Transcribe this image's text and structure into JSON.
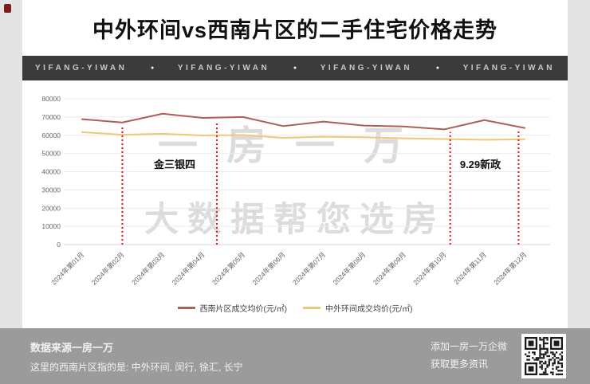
{
  "title": "中外环间vs西南片区的二手住宅价格走势",
  "banner": {
    "brand": "YIFANG-YIWAN",
    "separator": "●",
    "background": "#3b3b3b"
  },
  "chart_data": {
    "type": "line",
    "categories": [
      "2024年第01月",
      "2024年第02月",
      "2024年第03月",
      "2024年第04月",
      "2024年第05月",
      "2024年第06月",
      "2024年第07月",
      "2024年第08月",
      "2024年第09月",
      "2024年第10月",
      "2024年第11月",
      "2024年第12月"
    ],
    "series": [
      {
        "name": "西南片区成交均价(元/㎡)",
        "color": "#ae5f5a",
        "values": [
          68800,
          67000,
          71800,
          69500,
          70000,
          65000,
          67500,
          65300,
          64800,
          63200,
          68300,
          64000
        ]
      },
      {
        "name": "中外环间成交均价(元/㎡)",
        "color": "#edc878",
        "values": [
          61700,
          60300,
          60800,
          59900,
          60100,
          58600,
          59200,
          58900,
          58300,
          57900,
          57500,
          57800
        ]
      }
    ],
    "ylim": [
      0,
      80000
    ],
    "yticks": [
      0,
      10000,
      20000,
      30000,
      40000,
      50000,
      60000,
      70000,
      80000
    ],
    "grid": true,
    "legend_position": "bottom",
    "markers": {
      "color": "#ef1010",
      "positions": [
        2.0,
        4.35,
        10.15,
        11.85
      ]
    },
    "annotations": [
      {
        "text": "金三银四",
        "month_index": 3.3,
        "value": 42000
      },
      {
        "text": "9.29新政",
        "month_index": 10.9,
        "value": 42000
      }
    ],
    "watermark": {
      "line1": "一房一万",
      "line2": "大数据帮您选房"
    }
  },
  "footer": {
    "source_line1": "数据来源一房一万",
    "source_line2": "这里的西南片区指的是: 中外环间, 闵行, 徐汇, 长宁",
    "contact_line1": "添加一房一万企微",
    "contact_line2": "获取更多资讯",
    "qr_icon": "qr-code"
  }
}
